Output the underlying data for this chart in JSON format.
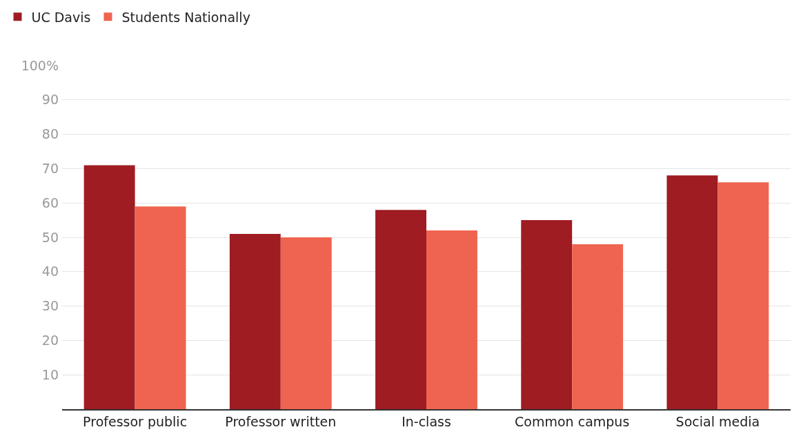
{
  "chart_data": {
    "type": "bar",
    "categories": [
      "Professor public",
      "Professor written",
      "In-class",
      "Common campus",
      "Social media"
    ],
    "series": [
      {
        "name": "UC Davis",
        "color": "#9e1c22",
        "values": [
          71,
          51,
          58,
          55,
          68
        ]
      },
      {
        "name": "Students Nationally",
        "color": "#ef6450",
        "values": [
          59,
          50,
          52,
          48,
          66
        ]
      }
    ],
    "ylim": [
      0,
      100
    ],
    "yticks": [
      10,
      20,
      30,
      40,
      50,
      60,
      70,
      80,
      90,
      {
        "value": 100,
        "label": "100%"
      }
    ],
    "grid": "y",
    "legend": "top left"
  }
}
